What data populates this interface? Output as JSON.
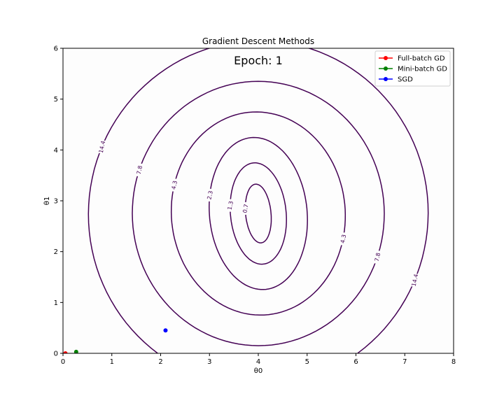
{
  "chart_data": {
    "type": "contour",
    "title": "Gradient Descent Methods",
    "annotation": "Epoch: 1",
    "xlabel": "θ0",
    "ylabel": "θ1",
    "xlim": [
      0,
      8
    ],
    "ylim": [
      0,
      6
    ],
    "xticks": [
      0,
      1,
      2,
      3,
      4,
      5,
      6,
      7,
      8
    ],
    "yticks": [
      0,
      1,
      2,
      3,
      4,
      5,
      6
    ],
    "grid": false,
    "legend_position": "top-right",
    "contour_color": "#440154",
    "contour_levels": [
      "0.7",
      "1.3",
      "2.3",
      "4.3",
      "7.8",
      "14.4"
    ],
    "series": [
      {
        "name": "Full-batch GD",
        "color": "#ff0000",
        "x": [
          0.05
        ],
        "y": [
          0.0
        ]
      },
      {
        "name": "Mini-batch GD",
        "color": "#008000",
        "x": [
          0.27
        ],
        "y": [
          0.03
        ]
      },
      {
        "name": "SGD",
        "color": "#0000ff",
        "x": [
          2.1
        ],
        "y": [
          0.45
        ]
      }
    ]
  }
}
